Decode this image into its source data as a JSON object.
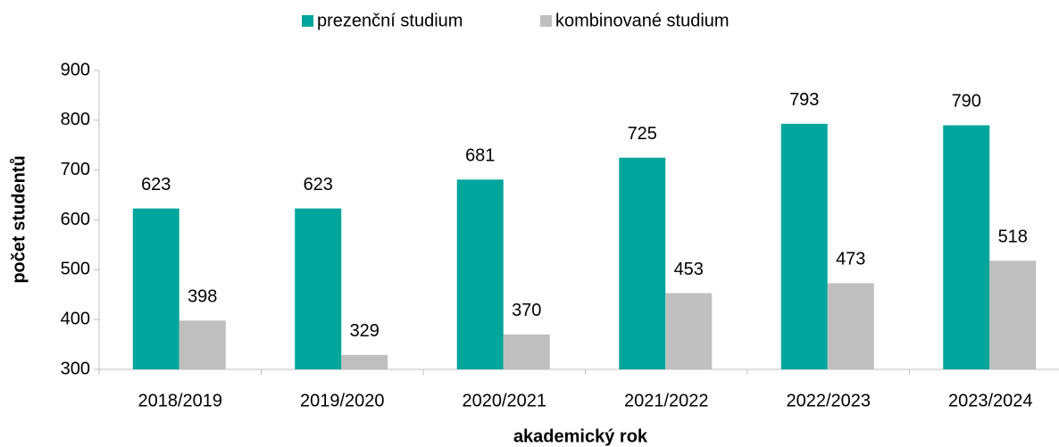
{
  "chart_data": {
    "type": "bar",
    "categories": [
      "2018/2019",
      "2019/2020",
      "2020/2021",
      "2021/2022",
      "2022/2023",
      "2023/2024"
    ],
    "series": [
      {
        "name": "prezenční studium",
        "color": "#00a59b",
        "values": [
          623,
          623,
          681,
          725,
          793,
          790
        ]
      },
      {
        "name": "kombinované studium",
        "color": "#bfbfbf",
        "values": [
          398,
          329,
          370,
          453,
          473,
          518
        ]
      }
    ],
    "x_label": "akademický rok",
    "y_label": "počet studentů",
    "ylim": [
      300,
      900
    ],
    "yticks": [
      300,
      400,
      500,
      600,
      700,
      800,
      900
    ],
    "grid": false,
    "legend": "top"
  }
}
